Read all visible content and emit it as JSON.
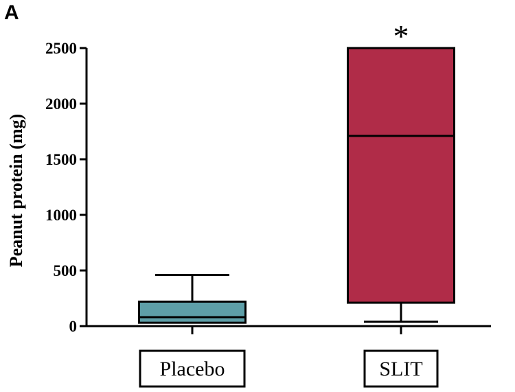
{
  "panel_label": "A",
  "chart_data": {
    "type": "boxplot",
    "ylabel": "Peanut protein (mg)",
    "ylim": [
      0,
      2500
    ],
    "yticks": [
      0,
      500,
      1000,
      1500,
      2000,
      2500
    ],
    "categories": [
      "Placebo",
      "SLIT"
    ],
    "boxes": [
      {
        "category": "Placebo",
        "min": 30,
        "q1": 30,
        "median": 80,
        "q3": 220,
        "max": 460,
        "color": "#5e9fa8"
      },
      {
        "category": "SLIT",
        "min": 40,
        "q1": 210,
        "median": 1710,
        "q3": 2500,
        "max": 2500,
        "color": "#b02c48"
      }
    ],
    "annotations": [
      {
        "category": "SLIT",
        "text": "*"
      }
    ],
    "grid": false
  }
}
